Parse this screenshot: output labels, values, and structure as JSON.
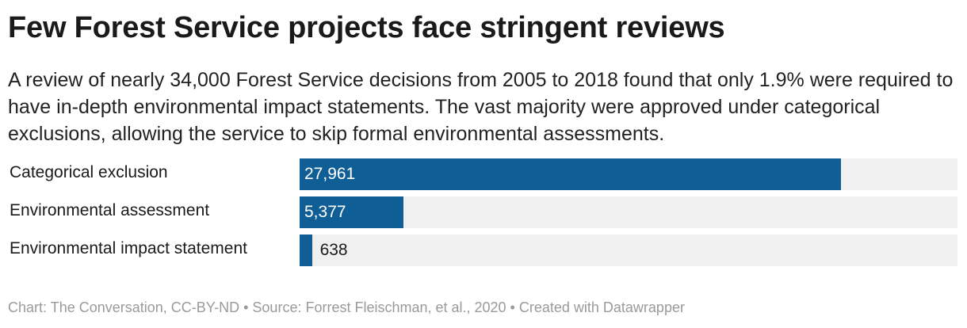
{
  "title": "Few Forest Service projects face stringent reviews",
  "subtitle": "A review of nearly 34,000 Forest Service decisions from 2005 to 2018 found that only 1.9% were required to have in-depth environmental impact statements. The vast majority were approved under categorical exclusions, allowing the service to skip formal environmental assessments.",
  "footer": "Chart: The Conversation, CC-BY-ND • Source: Forrest Fleischman, et al., 2020 • Created with Datawrapper",
  "colors": {
    "bar": "#0f5e95",
    "track": "#f0f0f0"
  },
  "chart_data": {
    "type": "bar",
    "orientation": "horizontal",
    "categories": [
      "Categorical exclusion",
      "Environmental assessment",
      "Environmental impact statement"
    ],
    "values": [
      27961,
      5377,
      638
    ],
    "value_labels": [
      "27,961",
      "5,377",
      "638"
    ],
    "xlim": [
      0,
      34000
    ],
    "grid": false
  }
}
